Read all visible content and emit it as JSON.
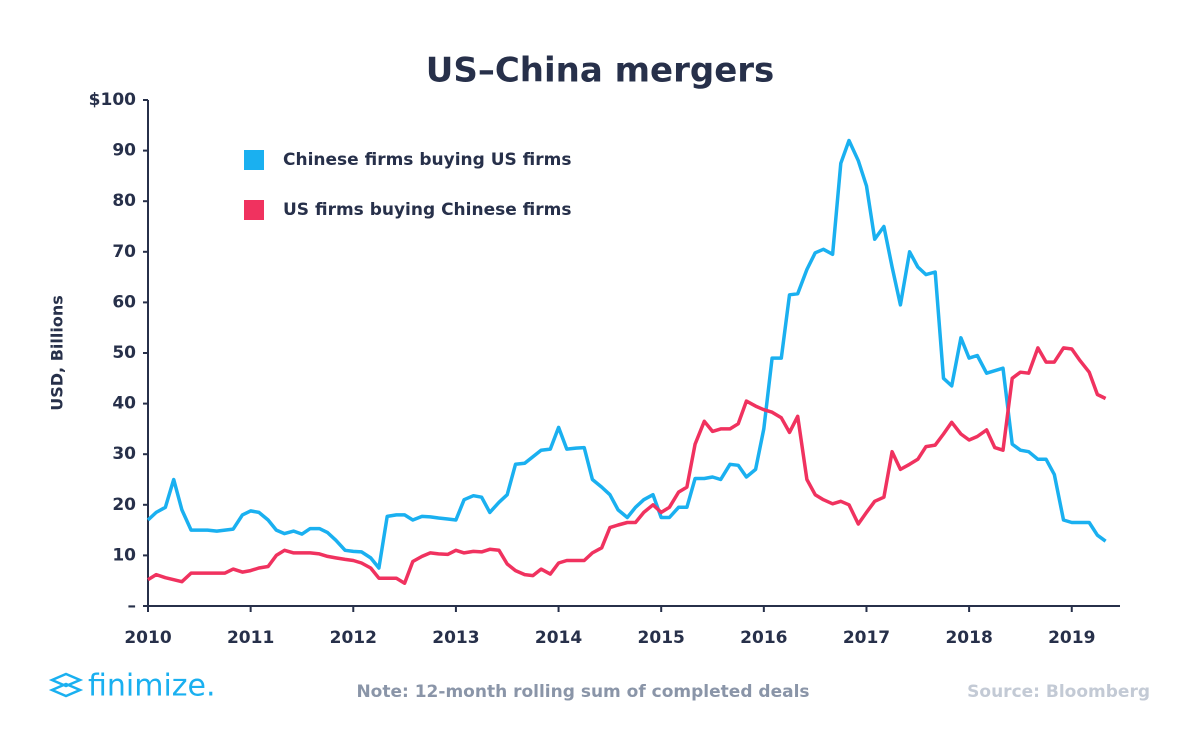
{
  "chart_data": {
    "type": "line",
    "title": "US–China mergers",
    "y_label": "USD, Billions",
    "note": "Note: 12-month rolling sum of completed deals",
    "source": "Source: Bloomberg",
    "brand": "finimize.",
    "legend": "top-left",
    "x": [
      2010.0,
      2010.08,
      2010.17,
      2010.25,
      2010.33,
      2010.42,
      2010.5,
      2010.58,
      2010.67,
      2010.75,
      2010.83,
      2010.92,
      2011.0,
      2011.08,
      2011.17,
      2011.25,
      2011.33,
      2011.42,
      2011.5,
      2011.58,
      2011.67,
      2011.75,
      2011.83,
      2011.92,
      2012.0,
      2012.08,
      2012.17,
      2012.25,
      2012.33,
      2012.42,
      2012.5,
      2012.58,
      2012.67,
      2012.75,
      2012.83,
      2012.92,
      2013.0,
      2013.08,
      2013.17,
      2013.25,
      2013.33,
      2013.42,
      2013.5,
      2013.58,
      2013.67,
      2013.75,
      2013.83,
      2013.92,
      2014.0,
      2014.08,
      2014.17,
      2014.25,
      2014.33,
      2014.42,
      2014.5,
      2014.58,
      2014.67,
      2014.75,
      2014.83,
      2014.92,
      2015.0,
      2015.08,
      2015.17,
      2015.25,
      2015.33,
      2015.42,
      2015.5,
      2015.58,
      2015.67,
      2015.75,
      2015.83,
      2015.92,
      2016.0,
      2016.08,
      2016.17,
      2016.25,
      2016.33,
      2016.42,
      2016.5,
      2016.58,
      2016.67,
      2016.75,
      2016.83,
      2016.92,
      2017.0,
      2017.08,
      2017.17,
      2017.25,
      2017.33,
      2017.42,
      2017.5,
      2017.58,
      2017.67,
      2017.75,
      2017.83,
      2017.92,
      2018.0,
      2018.08,
      2018.17,
      2018.25,
      2018.33,
      2018.42,
      2018.5,
      2018.58,
      2018.67,
      2018.75,
      2018.83,
      2018.92,
      2019.0,
      2019.08,
      2019.17,
      2019.25,
      2019.33
    ],
    "series": [
      {
        "name": "Chinese firms buying US firms",
        "color": "#1ab0f0",
        "values": [
          17,
          18.5,
          19.5,
          25,
          19,
          15,
          15,
          15,
          14.8,
          15,
          15.2,
          18,
          18.8,
          18.5,
          17,
          15,
          14.3,
          14.8,
          14.2,
          15.3,
          15.3,
          14.5,
          13,
          11,
          10.8,
          10.7,
          9.5,
          7.5,
          17.7,
          18,
          18,
          17,
          17.7,
          17.6,
          17.4,
          17.2,
          17,
          21,
          21.8,
          21.5,
          18.5,
          20.5,
          22,
          28,
          28.2,
          29.5,
          30.8,
          31,
          35.3,
          31,
          31.2,
          31.3,
          25,
          23.5,
          22,
          19,
          17.5,
          19.5,
          21,
          22,
          17.5,
          17.5,
          19.5,
          19.5,
          25.2,
          25.2,
          25.5,
          25,
          28,
          27.8,
          25.5,
          27,
          35,
          49,
          49,
          61.5,
          61.7,
          66.5,
          69.8,
          70.5,
          69.5,
          87.5,
          92,
          88,
          83,
          72.5,
          75,
          67,
          59.5,
          70,
          67,
          65.5,
          66,
          45,
          43.5,
          53,
          49,
          49.5,
          46,
          46.5,
          47,
          32,
          30.8,
          30.5,
          29,
          29,
          26,
          17,
          16.5,
          16.5,
          16.5,
          14,
          12.8
        ]
      },
      {
        "name": "US firms buying Chinese firms",
        "color": "#f0325f",
        "values": [
          5.2,
          6.2,
          5.6,
          5.2,
          4.8,
          6.5,
          6.5,
          6.5,
          6.5,
          6.5,
          7.3,
          6.7,
          7,
          7.5,
          7.8,
          10,
          11,
          10.5,
          10.5,
          10.5,
          10.3,
          9.8,
          9.5,
          9.2,
          9,
          8.5,
          7.5,
          5.5,
          5.5,
          5.5,
          4.5,
          8.8,
          9.8,
          10.5,
          10.3,
          10.2,
          11,
          10.5,
          10.8,
          10.7,
          11.2,
          11,
          8.3,
          7,
          6.2,
          6,
          7.3,
          6.3,
          8.5,
          9,
          9,
          9,
          10.5,
          11.5,
          15.5,
          16,
          16.5,
          16.5,
          18.5,
          20,
          18.5,
          19.5,
          22.5,
          23.5,
          32,
          36.5,
          34.5,
          35,
          35,
          36,
          40.5,
          39.5,
          38.8,
          38.3,
          37.2,
          34.3,
          37.5,
          25,
          22,
          21,
          20.2,
          20.7,
          20,
          16.2,
          18.5,
          20.7,
          21.5,
          30.5,
          27,
          28,
          29,
          31.5,
          31.8,
          34,
          36.3,
          34,
          32.8,
          33.5,
          34.8,
          31.3,
          30.8,
          45,
          46.2,
          46,
          51,
          48.2,
          48.2,
          51,
          50.8,
          48.5,
          46.2,
          41.8,
          41
        ]
      }
    ],
    "xlim": [
      2010,
      2019.47
    ],
    "xticks": [
      2010,
      2011,
      2012,
      2013,
      2014,
      2015,
      2016,
      2017,
      2018,
      2019
    ],
    "ylim": [
      0,
      100
    ],
    "yticks": [
      {
        "value": 0,
        "label": "–"
      },
      10,
      20,
      30,
      40,
      50,
      60,
      70,
      80,
      90,
      {
        "value": 100,
        "label": "$100"
      }
    ],
    "grid": false
  }
}
